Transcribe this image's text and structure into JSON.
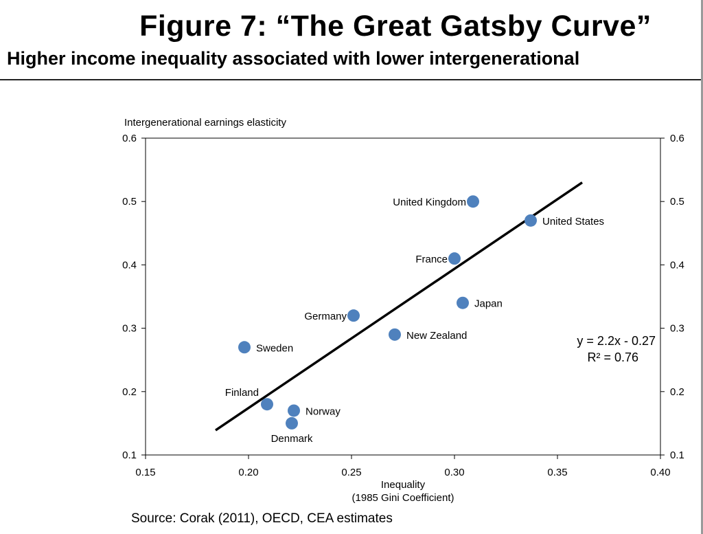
{
  "header": {
    "title": "Figure 7: “The Great Gatsby Curve”",
    "subtitle": "Higher income inequality associated with lower intergenerational"
  },
  "footer": {
    "source": "Source: Corak (2011), OECD, CEA estimates"
  },
  "chart_data": {
    "type": "scatter",
    "ylabel": "Intergenerational earnings elasticity",
    "xlabel_line1": "Inequality",
    "xlabel_line2": "(1985 Gini Coefficient)",
    "xlim": [
      0.15,
      0.4
    ],
    "ylim": [
      0.1,
      0.6
    ],
    "x_ticks": [
      "0.15",
      "0.20",
      "0.25",
      "0.30",
      "0.35",
      "0.40"
    ],
    "y_ticks": [
      "0.1",
      "0.2",
      "0.3",
      "0.4",
      "0.5",
      "0.6"
    ],
    "y_ticks_right": [
      "0.1",
      "0.2",
      "0.3",
      "0.4",
      "0.5",
      "0.6"
    ],
    "grid": false,
    "marker_color": "#4f81bd",
    "points": [
      {
        "label": "United Kingdom",
        "x": 0.309,
        "y": 0.5,
        "label_side": "left"
      },
      {
        "label": "United States",
        "x": 0.337,
        "y": 0.47,
        "label_side": "right"
      },
      {
        "label": "France",
        "x": 0.3,
        "y": 0.41,
        "label_side": "left"
      },
      {
        "label": "Japan",
        "x": 0.304,
        "y": 0.34,
        "label_side": "right"
      },
      {
        "label": "Germany",
        "x": 0.251,
        "y": 0.32,
        "label_side": "left"
      },
      {
        "label": "New Zealand",
        "x": 0.271,
        "y": 0.29,
        "label_side": "right"
      },
      {
        "label": "Sweden",
        "x": 0.198,
        "y": 0.27,
        "label_side": "right"
      },
      {
        "label": "Finland",
        "x": 0.209,
        "y": 0.18,
        "label_side": "above-left"
      },
      {
        "label": "Norway",
        "x": 0.222,
        "y": 0.17,
        "label_side": "right"
      },
      {
        "label": "Denmark",
        "x": 0.221,
        "y": 0.15,
        "label_side": "below"
      }
    ],
    "trendline": {
      "x_start": 0.184,
      "y_start": 0.139,
      "x_end": 0.362,
      "y_end": 0.53,
      "color": "#000000"
    },
    "equation": "y = 2.2x - 0.27",
    "r_squared": "R² = 0.76"
  }
}
